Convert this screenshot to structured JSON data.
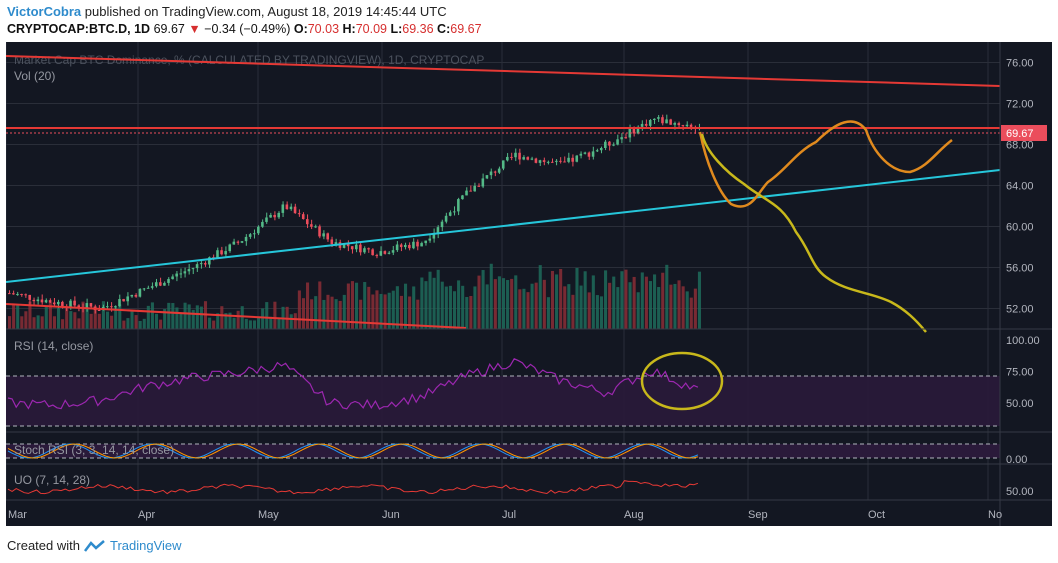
{
  "header": {
    "author": "VictorCobra",
    "published": "published on TradingView.com, August 18, 2019 14:45:44 UTC",
    "symbol": "CRYPTOCAP:BTC.D, 1D",
    "last": "69.67",
    "change_arrow": "▼",
    "change": "−0.34 (−0.49%)",
    "o_label": "O:",
    "o": "70.03",
    "h_label": "H:",
    "h": "70.09",
    "l_label": "L:",
    "l": "69.36",
    "c_label": "C:",
    "c": "69.67"
  },
  "chart_data": [
    {
      "type": "line",
      "title": "Market Cap BTC Dominance, % (CALCULATED BY TRADINGVIEW), 1D, CRYPTOCAP",
      "volume_label": "Vol (20)",
      "price_label": "69.67",
      "y_ticks": [
        "76.00",
        "72.00",
        "68.00",
        "64.00",
        "60.00",
        "56.00",
        "52.00"
      ],
      "ylim": [
        50,
        78
      ],
      "x_ticks": [
        "Mar",
        "Apr",
        "May",
        "Jun",
        "Jul",
        "Aug",
        "Sep",
        "Oct",
        "No"
      ],
      "x": [
        "Mar 01",
        "Mar 15",
        "Apr 01",
        "Apr 15",
        "May 01",
        "May 10",
        "May 15",
        "Jun 01",
        "Jun 10",
        "Jun 20",
        "Jul 01",
        "Jul 10",
        "Jul 20",
        "Aug 01",
        "Aug 10",
        "Aug 18"
      ],
      "series": [
        {
          "values": [
            53.5,
            52.6,
            52.0,
            54.0,
            56.0,
            58.5,
            62.0,
            58.5,
            57.5,
            58.5,
            63.5,
            67.0,
            66.0,
            68.0,
            70.5,
            69.67
          ]
        }
      ],
      "colors": {
        "up": "#53b987",
        "down": "#eb4d5c",
        "background": "#131722"
      }
    },
    {
      "type": "line",
      "title": "RSI (14, close)",
      "y_ticks": [
        "100.00",
        "75.00",
        "50.00"
      ],
      "ylim": [
        30,
        100
      ],
      "x": [
        "Mar 01",
        "Mar 15",
        "Apr 01",
        "Apr 15",
        "May 01",
        "May 10",
        "May 15",
        "Jun 01",
        "Jun 10",
        "Jun 20",
        "Jul 01",
        "Jul 10",
        "Jul 20",
        "Aug 01",
        "Aug 10",
        "Aug 18"
      ],
      "series": [
        {
          "values": [
            50,
            48,
            52,
            63,
            70,
            74,
            80,
            50,
            48,
            55,
            72,
            83,
            68,
            58,
            76,
            60
          ]
        }
      ],
      "colors": {
        "line": "#9c27b0"
      }
    },
    {
      "type": "line",
      "title": "Stoch RSI (3, 3, 14, 14, close)",
      "y_ticks": [
        "0.00"
      ],
      "colors": {
        "k": "#2196f3",
        "d": "#ff9800"
      }
    },
    {
      "type": "line",
      "title": "UO (7, 14, 28)",
      "y_ticks": [
        "50.00"
      ],
      "colors": {
        "line": "#e53935"
      }
    }
  ],
  "footer": {
    "created": "Created with",
    "brand": "TradingView"
  }
}
